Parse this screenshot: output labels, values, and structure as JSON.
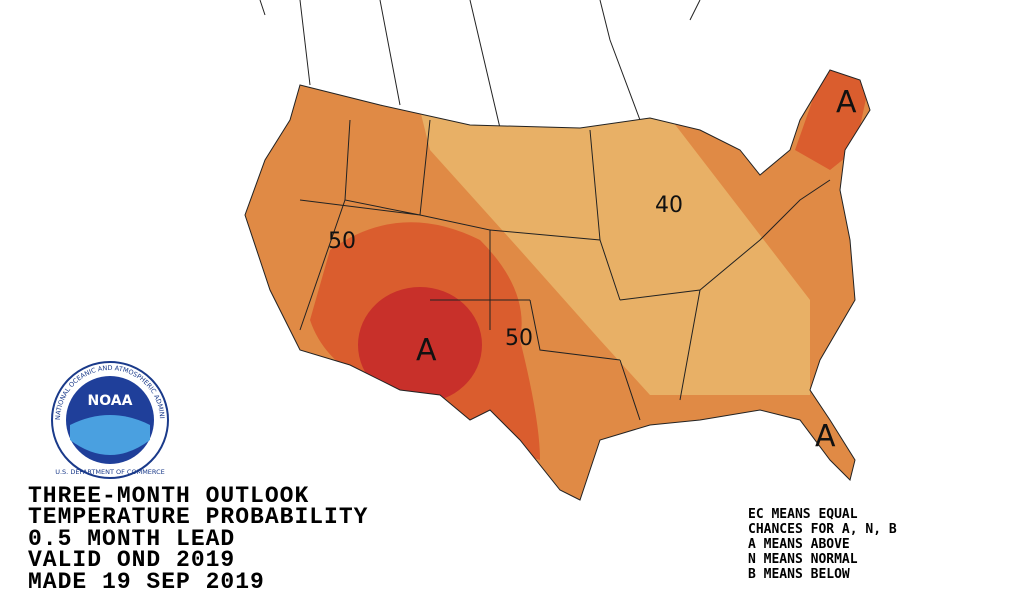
{
  "header": {
    "lines": [
      "THREE-MONTH OUTLOOK",
      "TEMPERATURE PROBABILITY",
      "0.5 MONTH LEAD",
      "VALID OND 2019",
      "MADE 19 SEP 2019"
    ]
  },
  "legend": {
    "lines": [
      "EC MEANS EQUAL",
      "CHANCES FOR A, N, B",
      "A MEANS ABOVE",
      "N MEANS NORMAL",
      "B MEANS BELOW"
    ]
  },
  "map": {
    "contour_labels": [
      "50",
      "50",
      "40"
    ],
    "category_labels": [
      "A",
      "A",
      "A"
    ]
  },
  "logo": {
    "text": "NOAA",
    "ring_text": "NATIONAL OCEANIC AND ATMOSPHERIC ADMINISTRATION",
    "bottom_text": "U.S. DEPARTMENT OF COMMERCE"
  }
}
